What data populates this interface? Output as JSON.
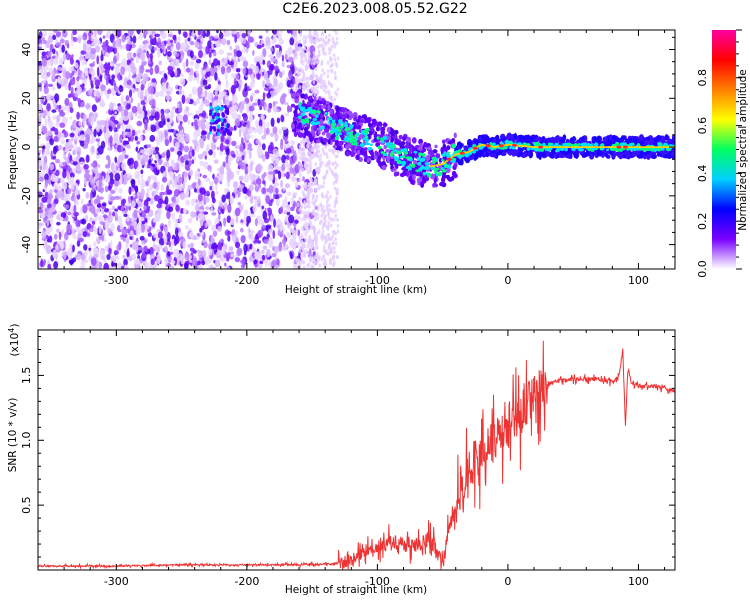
{
  "title": "C2E6.2023.008.05.52.G22",
  "chart_data": [
    {
      "type": "heatmap",
      "xlabel": "Height of straight line (km)",
      "ylabel": "Frequency (Hz)",
      "xlim": [
        -360,
        128
      ],
      "ylim": [
        -50,
        48
      ],
      "xticks": [
        -300,
        -200,
        -100,
        0,
        100
      ],
      "xtick_labels": [
        "-300",
        "-200",
        "-100",
        "0",
        "100"
      ],
      "yticks": [
        -40,
        -20,
        0,
        20,
        40
      ],
      "ytick_labels": [
        "-40",
        "-20",
        "0",
        "20",
        "40"
      ],
      "colorbar": {
        "label": "Normalized spectral amplitude",
        "range": [
          0.0,
          1.0
        ],
        "ticks": [
          0.0,
          0.2,
          0.4,
          0.6,
          0.8
        ],
        "tick_labels": [
          "0.0",
          "0.2",
          "0.4",
          "0.6",
          "0.8"
        ],
        "colormap": [
          "#ffffff",
          "#7a00ff",
          "#0000ff",
          "#00d0ff",
          "#00ff60",
          "#ffff00",
          "#ff8000",
          "#ff0000",
          "#ff00a0"
        ]
      },
      "ridge": {
        "x": [
          -160,
          -140,
          -120,
          -100,
          -80,
          -60,
          -50,
          -40,
          -30,
          -20,
          -10,
          0,
          20,
          40,
          60,
          80,
          100,
          128
        ],
        "y": [
          14,
          10,
          5,
          2,
          -4,
          -8,
          -7,
          -3,
          -2,
          1,
          0,
          1,
          0,
          0,
          0,
          0,
          0,
          0
        ]
      },
      "grid": false
    },
    {
      "type": "line",
      "xlabel": "Height of straight line (km)",
      "ylabel": "SNR (10 * v/v)",
      "scale_label": "(x10",
      "scale_exp": "4",
      "scale_close": ")",
      "xlim": [
        -360,
        128
      ],
      "ylim": [
        0,
        1.85
      ],
      "xticks": [
        -300,
        -200,
        -100,
        0,
        100
      ],
      "xtick_labels": [
        "-300",
        "-200",
        "-100",
        "0",
        "100"
      ],
      "yticks": [
        0.5,
        1.0,
        1.5
      ],
      "ytick_labels": [
        "0.5",
        "1.0",
        "1.5"
      ],
      "series": [
        {
          "color": "#ee3333",
          "x": [
            -360,
            -300,
            -250,
            -200,
            -150,
            -130,
            -120,
            -110,
            -100,
            -90,
            -80,
            -70,
            -60,
            -55,
            -50,
            -45,
            -40,
            -35,
            -30,
            -25,
            -20,
            -15,
            -10,
            -5,
            0,
            5,
            10,
            15,
            20,
            25,
            30,
            35,
            40,
            50,
            60,
            70,
            80,
            85,
            88,
            90,
            92,
            95,
            100,
            110,
            120,
            128
          ],
          "y": [
            0.03,
            0.03,
            0.04,
            0.04,
            0.04,
            0.05,
            0.08,
            0.12,
            0.17,
            0.22,
            0.2,
            0.18,
            0.25,
            0.15,
            0.04,
            0.35,
            0.45,
            0.6,
            0.75,
            0.85,
            0.88,
            0.95,
            1.0,
            1.05,
            1.12,
            1.18,
            1.22,
            1.3,
            1.35,
            1.38,
            1.42,
            1.45,
            1.46,
            1.47,
            1.47,
            1.47,
            1.45,
            1.48,
            1.7,
            1.1,
            1.55,
            1.44,
            1.42,
            1.42,
            1.4,
            1.38
          ]
        }
      ],
      "grid": false
    }
  ]
}
